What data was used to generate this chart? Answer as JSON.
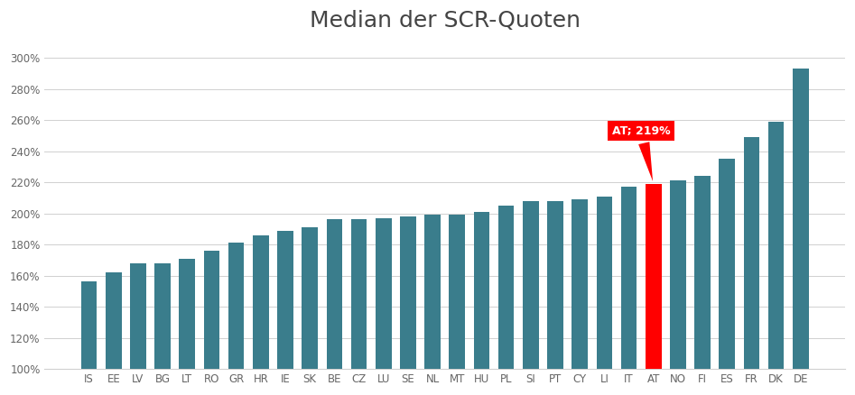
{
  "categories": [
    "IS",
    "EE",
    "LV",
    "BG",
    "LT",
    "RO",
    "GR",
    "HR",
    "IE",
    "SK",
    "BE",
    "CZ",
    "LU",
    "SE",
    "NL",
    "MT",
    "HU",
    "PL",
    "SI",
    "PT",
    "CY",
    "LI",
    "IT",
    "AT",
    "NO",
    "FI",
    "ES",
    "FR",
    "DK",
    "DE"
  ],
  "values": [
    156,
    162,
    168,
    168,
    171,
    176,
    181,
    186,
    189,
    191,
    196,
    196,
    197,
    198,
    199,
    199,
    201,
    205,
    208,
    208,
    209,
    211,
    217,
    219,
    221,
    224,
    235,
    249,
    259,
    293
  ],
  "highlight_index": 23,
  "highlight_label": "AT; 219%",
  "bar_color": "#3a7d8c",
  "highlight_color": "#ff0000",
  "title": "Median der SCR-Quoten",
  "title_fontsize": 18,
  "ylim_min": 100,
  "ylim_max": 310,
  "ytick_step": 20,
  "background_color": "#ffffff",
  "grid_color": "#d0d0d0",
  "tick_label_color": "#666666",
  "axis_label_fontsize": 8.5
}
